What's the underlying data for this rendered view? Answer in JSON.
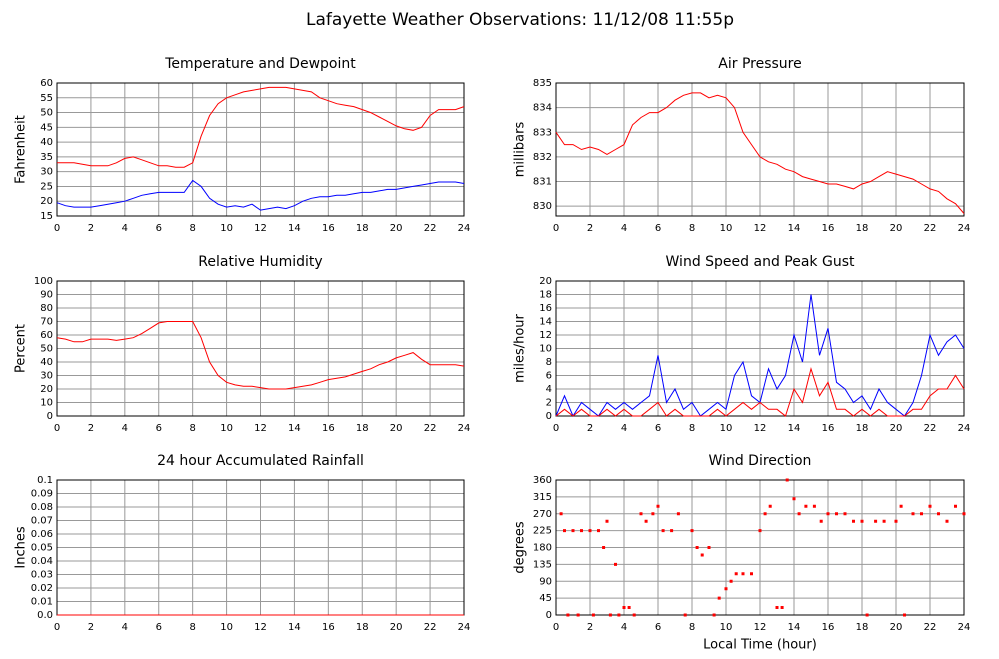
{
  "title": "Lafayette Weather Observations: 11/12/08 11:55p",
  "chart_data": [
    {
      "type": "line",
      "title": "Temperature and Dewpoint",
      "ylabel": "Fahrenheit",
      "x": [
        0,
        0.5,
        1,
        1.5,
        2,
        2.5,
        3,
        3.5,
        4,
        4.5,
        5,
        5.5,
        6,
        6.5,
        7,
        7.5,
        8,
        8.5,
        9,
        9.5,
        10,
        10.5,
        11,
        11.5,
        12,
        12.5,
        13,
        13.5,
        14,
        14.5,
        15,
        15.5,
        16,
        16.5,
        17,
        17.5,
        18,
        18.5,
        19,
        19.5,
        20,
        20.5,
        21,
        21.5,
        22,
        22.5,
        23,
        23.5,
        24
      ],
      "xlim": [
        0,
        24
      ],
      "xticks": [
        0,
        2,
        4,
        6,
        8,
        10,
        12,
        14,
        16,
        18,
        20,
        22,
        24
      ],
      "ylim": [
        15,
        60
      ],
      "yticks": [
        15,
        20,
        25,
        30,
        35,
        40,
        45,
        50,
        55,
        60
      ],
      "grid": true,
      "series": [
        {
          "color": "#ff0000",
          "values": [
            33,
            33,
            33,
            32.5,
            32,
            32,
            32,
            33,
            34.5,
            35,
            34,
            33,
            32,
            32,
            31.5,
            31.5,
            33,
            42,
            49,
            53,
            55,
            56,
            57,
            57.5,
            58,
            58.5,
            58.5,
            58.5,
            58,
            57.5,
            57,
            55,
            54,
            53,
            52.5,
            52,
            51,
            50,
            48.5,
            47,
            45.5,
            44.5,
            44,
            45,
            49,
            51,
            51,
            51,
            52
          ]
        },
        {
          "color": "#0000ff",
          "values": [
            19.5,
            18.5,
            18,
            18,
            18,
            18.5,
            19,
            19.5,
            20,
            21,
            22,
            22.5,
            23,
            23,
            23,
            23,
            27,
            25,
            21,
            19,
            18,
            18.5,
            18,
            19,
            17,
            17.5,
            18,
            17.5,
            18.5,
            20,
            21,
            21.5,
            21.5,
            22,
            22,
            22.5,
            23,
            23,
            23.5,
            24,
            24,
            24.5,
            25,
            25.5,
            26,
            26.5,
            26.5,
            26.5,
            26
          ]
        }
      ]
    },
    {
      "type": "line",
      "title": "Air Pressure",
      "ylabel": "millibars",
      "x": [
        0,
        0.5,
        1,
        1.5,
        2,
        2.5,
        3,
        3.5,
        4,
        4.5,
        5,
        5.5,
        6,
        6.5,
        7,
        7.5,
        8,
        8.5,
        9,
        9.5,
        10,
        10.5,
        11,
        11.5,
        12,
        12.5,
        13,
        13.5,
        14,
        14.5,
        15,
        15.5,
        16,
        16.5,
        17,
        17.5,
        18,
        18.5,
        19,
        19.5,
        20,
        20.5,
        21,
        21.5,
        22,
        22.5,
        23,
        23.5,
        24
      ],
      "xlim": [
        0,
        24
      ],
      "xticks": [
        0,
        2,
        4,
        6,
        8,
        10,
        12,
        14,
        16,
        18,
        20,
        22,
        24
      ],
      "ylim": [
        829.6,
        835
      ],
      "yticks": [
        830,
        831,
        832,
        833,
        834,
        835
      ],
      "grid": true,
      "series": [
        {
          "color": "#ff0000",
          "values": [
            833,
            832.5,
            832.5,
            832.3,
            832.4,
            832.3,
            832.1,
            832.3,
            832.5,
            833.3,
            833.6,
            833.8,
            833.8,
            834,
            834.3,
            834.5,
            834.6,
            834.6,
            834.4,
            834.5,
            834.4,
            834,
            833,
            832.5,
            832,
            831.8,
            831.7,
            831.5,
            831.4,
            831.2,
            831.1,
            831,
            830.9,
            830.9,
            830.8,
            830.7,
            830.9,
            831,
            831.2,
            831.4,
            831.3,
            831.2,
            831.1,
            830.9,
            830.7,
            830.6,
            830.3,
            830.1,
            829.7
          ]
        }
      ]
    },
    {
      "type": "line",
      "title": "Relative Humidity",
      "ylabel": "Percent",
      "x": [
        0,
        0.5,
        1,
        1.5,
        2,
        2.5,
        3,
        3.5,
        4,
        4.5,
        5,
        5.5,
        6,
        6.5,
        7,
        7.5,
        8,
        8.5,
        9,
        9.5,
        10,
        10.5,
        11,
        11.5,
        12,
        12.5,
        13,
        13.5,
        14,
        14.5,
        15,
        15.5,
        16,
        16.5,
        17,
        17.5,
        18,
        18.5,
        19,
        19.5,
        20,
        20.5,
        21,
        21.5,
        22,
        22.5,
        23,
        23.5,
        24
      ],
      "xlim": [
        0,
        24
      ],
      "xticks": [
        0,
        2,
        4,
        6,
        8,
        10,
        12,
        14,
        16,
        18,
        20,
        22,
        24
      ],
      "ylim": [
        0,
        100
      ],
      "yticks": [
        0,
        10,
        20,
        30,
        40,
        50,
        60,
        70,
        80,
        90,
        100
      ],
      "grid": true,
      "series": [
        {
          "color": "#ff0000",
          "values": [
            58,
            57,
            55,
            55,
            57,
            57,
            57,
            56,
            57,
            58,
            61,
            65,
            69,
            70,
            70,
            70,
            70,
            58,
            40,
            30,
            25,
            23,
            22,
            22,
            21,
            20,
            20,
            20,
            21,
            22,
            23,
            25,
            27,
            28,
            29,
            31,
            33,
            35,
            38,
            40,
            43,
            45,
            47,
            42,
            38,
            38,
            38,
            38,
            37
          ]
        }
      ]
    },
    {
      "type": "line",
      "title": "Wind Speed and Peak Gust",
      "ylabel": "miles/hour",
      "x": [
        0,
        0.5,
        1,
        1.5,
        2,
        2.5,
        3,
        3.5,
        4,
        4.5,
        5,
        5.5,
        6,
        6.5,
        7,
        7.5,
        8,
        8.5,
        9,
        9.5,
        10,
        10.5,
        11,
        11.5,
        12,
        12.5,
        13,
        13.5,
        14,
        14.5,
        15,
        15.5,
        16,
        16.5,
        17,
        17.5,
        18,
        18.5,
        19,
        19.5,
        20,
        20.5,
        21,
        21.5,
        22,
        22.5,
        23,
        23.5,
        24
      ],
      "xlim": [
        0,
        24
      ],
      "xticks": [
        0,
        2,
        4,
        6,
        8,
        10,
        12,
        14,
        16,
        18,
        20,
        22,
        24
      ],
      "ylim": [
        0,
        20
      ],
      "yticks": [
        0,
        2,
        4,
        6,
        8,
        10,
        12,
        14,
        16,
        18,
        20
      ],
      "grid": true,
      "series": [
        {
          "color": "#0000ff",
          "values": [
            0,
            3,
            0,
            2,
            1,
            0,
            2,
            1,
            2,
            1,
            2,
            3,
            9,
            2,
            4,
            1,
            2,
            0,
            1,
            2,
            1,
            6,
            8,
            3,
            2,
            7,
            4,
            6,
            12,
            8,
            18,
            9,
            13,
            5,
            4,
            2,
            3,
            1,
            4,
            2,
            1,
            0,
            2,
            6,
            12,
            9,
            11,
            12,
            10
          ]
        },
        {
          "color": "#ff0000",
          "values": [
            0,
            1,
            0,
            1,
            0,
            0,
            1,
            0,
            1,
            0,
            0,
            1,
            2,
            0,
            1,
            0,
            0,
            0,
            0,
            1,
            0,
            1,
            2,
            1,
            2,
            1,
            1,
            0,
            4,
            2,
            7,
            3,
            5,
            1,
            1,
            0,
            1,
            0,
            1,
            0,
            0,
            0,
            1,
            1,
            3,
            4,
            4,
            6,
            4
          ]
        }
      ]
    },
    {
      "type": "line",
      "title": "24 hour Accumulated Rainfall",
      "ylabel": "Inches",
      "x": [
        0,
        24
      ],
      "xlim": [
        0,
        24
      ],
      "xticks": [
        0,
        2,
        4,
        6,
        8,
        10,
        12,
        14,
        16,
        18,
        20,
        22,
        24
      ],
      "ylim": [
        0,
        0.1
      ],
      "yticks": [
        {
          "value": 0,
          "label": "0.0"
        },
        0.01,
        0.02,
        0.03,
        0.04,
        0.05,
        0.06,
        0.07,
        0.08,
        0.09,
        0.1
      ],
      "grid": true,
      "series": [
        {
          "color": "#ff0000",
          "values": [
            0,
            0
          ]
        }
      ]
    },
    {
      "type": "scatter",
      "title": "Wind Direction",
      "ylabel": "degrees",
      "xlabel": "Local Time (hour)",
      "x": [
        0.3,
        0.5,
        0.7,
        1,
        1.3,
        1.5,
        2,
        2.2,
        2.5,
        2.8,
        3,
        3.2,
        3.5,
        3.7,
        4,
        4.3,
        4.6,
        5,
        5.3,
        5.7,
        6,
        6.3,
        6.8,
        7.2,
        7.6,
        8,
        8.3,
        8.6,
        9,
        9.3,
        9.6,
        10,
        10.3,
        10.6,
        11,
        11.5,
        12,
        12.3,
        12.6,
        13,
        13.3,
        13.6,
        14,
        14.3,
        14.7,
        15.2,
        15.6,
        16,
        16.5,
        17,
        17.5,
        18,
        18.3,
        18.8,
        19.3,
        20,
        20.3,
        20.5,
        21,
        21.5,
        22,
        22.5,
        23,
        23.5,
        24
      ],
      "xlim": [
        0,
        24
      ],
      "xticks": [
        0,
        2,
        4,
        6,
        8,
        10,
        12,
        14,
        16,
        18,
        20,
        22,
        24
      ],
      "ylim": [
        0,
        360
      ],
      "yticks": [
        0,
        45,
        90,
        135,
        180,
        225,
        270,
        315,
        360
      ],
      "grid": true,
      "series": [
        {
          "color": "#ff0000",
          "values": [
            270,
            225,
            0,
            225,
            0,
            225,
            225,
            0,
            225,
            180,
            250,
            0,
            135,
            0,
            20,
            20,
            0,
            270,
            250,
            270,
            290,
            225,
            225,
            270,
            0,
            225,
            180,
            160,
            180,
            0,
            45,
            70,
            90,
            110,
            110,
            110,
            225,
            270,
            290,
            20,
            20,
            360,
            310,
            270,
            290,
            290,
            250,
            270,
            270,
            270,
            250,
            250,
            0,
            250,
            250,
            250,
            290,
            0,
            270,
            270,
            290,
            270,
            250,
            290,
            270
          ]
        }
      ]
    }
  ]
}
